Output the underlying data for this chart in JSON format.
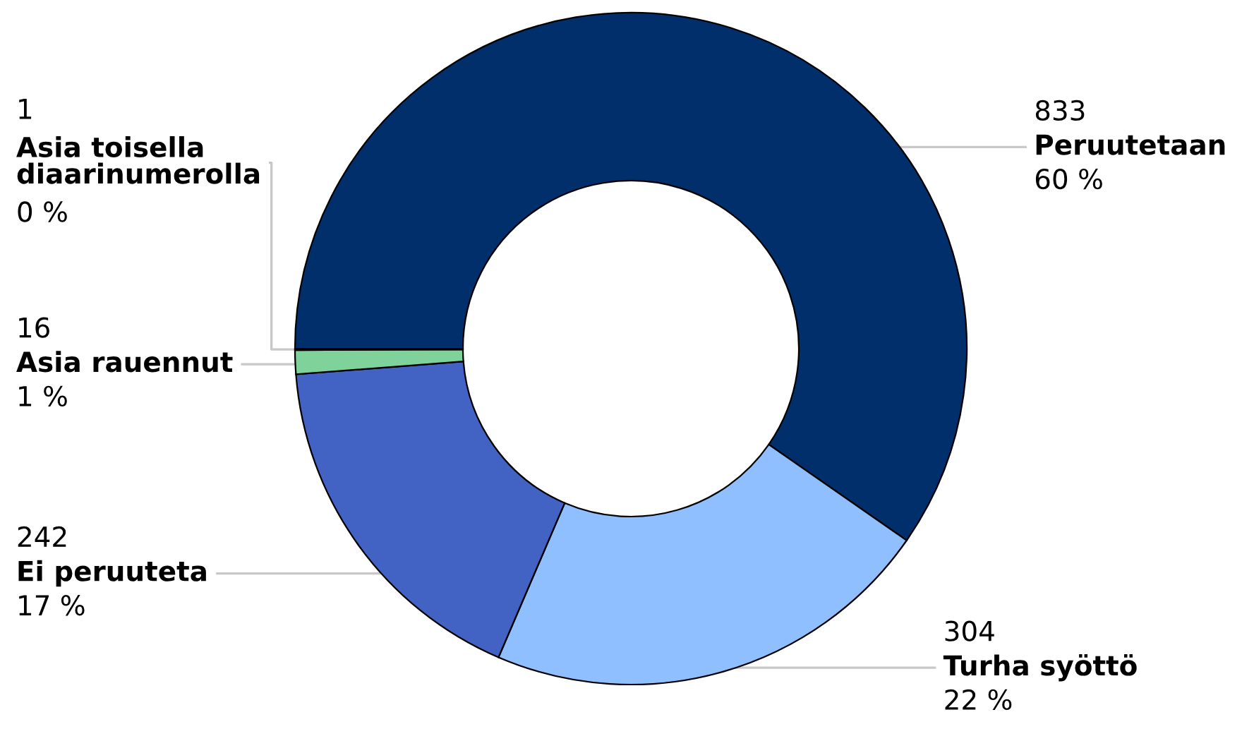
{
  "chart_data": {
    "type": "donut",
    "categories": [
      "Peruutetaan",
      "Turha syöttö",
      "Ei peruuteta",
      "Asia rauennut",
      "Asia toisella diaarinumerolla"
    ],
    "values": [
      833,
      304,
      242,
      16,
      1
    ],
    "colors": [
      "#002f6c",
      "#8fbfff",
      "#4263c4",
      "#7fd29a",
      "#1f3f8f"
    ],
    "value_labels": [
      "833",
      "304",
      "242",
      "16",
      "1"
    ],
    "annotations": [
      {
        "text": "60 %",
        "x": "Peruutetaan"
      },
      {
        "text": "22 %",
        "x": "Turha syöttö"
      },
      {
        "text": "17 %",
        "x": "Ei peruuteta"
      },
      {
        "text": "1 %",
        "x": "Asia rauennut"
      },
      {
        "text": "0 %",
        "x": "Asia toisella diaarinumerolla"
      }
    ],
    "legend": false
  }
}
